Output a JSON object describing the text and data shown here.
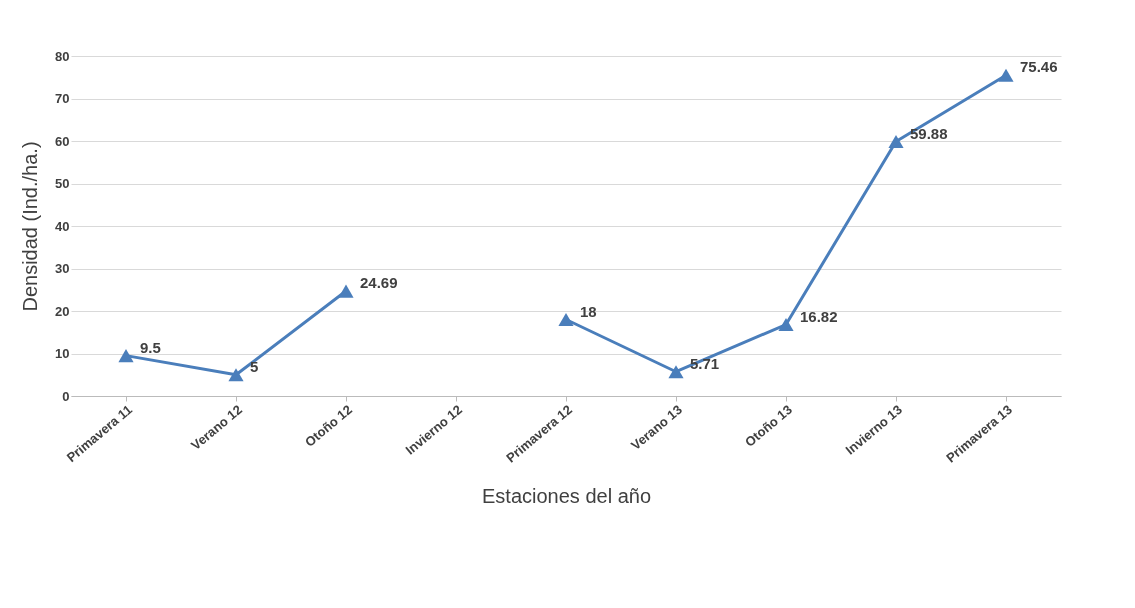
{
  "chart_data": {
    "type": "line",
    "xlabel": "Estaciones del año",
    "ylabel": "Densidad (Ind./ha.)",
    "categories": [
      "Primavera 11",
      "Verano 12",
      "Otoño 12",
      "Invierno 12",
      "Primavera 12",
      "Verano 13",
      "Otoño 13",
      "Invierno 13",
      "Primavera 13"
    ],
    "series": [
      {
        "color": "#4a7ebb",
        "values": [
          9.5,
          5,
          24.69,
          null,
          18,
          5.71,
          16.82,
          59.88,
          75.46
        ]
      }
    ],
    "ylim": [
      0,
      80
    ],
    "yticks": [
      0,
      10,
      20,
      30,
      40,
      50,
      60,
      70,
      80
    ],
    "grid": "y",
    "marker": "triangle",
    "line_style": "solid",
    "data_labels": true,
    "legend": false
  }
}
